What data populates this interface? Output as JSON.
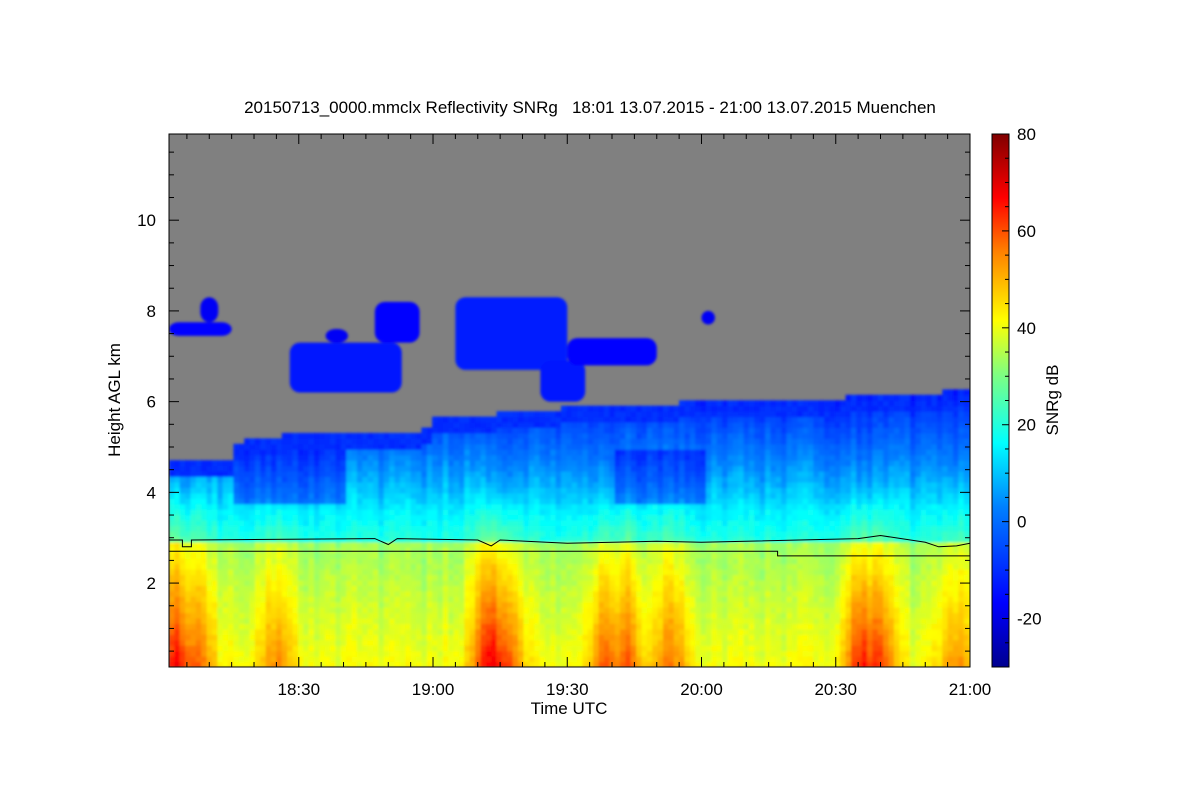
{
  "chart_data": {
    "type": "heatmap",
    "title": "20150713_0000.mmclx Reflectivity SNRg   18:01 13.07.2015 - 21:00 13.07.2015 Muenchen",
    "xlabel": "Time UTC",
    "ylabel": "Height AGL km",
    "colorbar_label": "SNRg dB",
    "x_range_min": [
      1081,
      1260
    ],
    "y_range_km": [
      0.15,
      11.9
    ],
    "color_range_db": [
      -30,
      80
    ],
    "x_ticks": [
      {
        "min": 1110,
        "label": "18:30"
      },
      {
        "min": 1140,
        "label": "19:00"
      },
      {
        "min": 1170,
        "label": "19:30"
      },
      {
        "min": 1200,
        "label": "20:00"
      },
      {
        "min": 1230,
        "label": "20:30"
      },
      {
        "min": 1260,
        "label": "21:00"
      }
    ],
    "y_ticks": [
      {
        "km": 2,
        "label": "2"
      },
      {
        "km": 4,
        "label": "4"
      },
      {
        "km": 6,
        "label": "6"
      },
      {
        "km": 8,
        "label": "8"
      },
      {
        "km": 10,
        "label": "10"
      }
    ],
    "colorbar_ticks": [
      {
        "db": -20,
        "label": "-20"
      },
      {
        "db": 0,
        "label": "0"
      },
      {
        "db": 20,
        "label": "20"
      },
      {
        "db": 40,
        "label": "40"
      },
      {
        "db": 60,
        "label": "60"
      },
      {
        "db": 80,
        "label": "80"
      }
    ],
    "background_color": "#808080",
    "cloud_top_km": [
      [
        1081,
        4.7
      ],
      [
        1096,
        4.7
      ],
      [
        1096,
        5.05
      ],
      [
        1115,
        5.3
      ],
      [
        1133,
        5.2
      ],
      [
        1140,
        5.4
      ],
      [
        1140,
        5.6
      ],
      [
        1160,
        5.7
      ],
      [
        1175,
        5.85
      ],
      [
        1192,
        5.9
      ],
      [
        1220,
        6.0
      ],
      [
        1240,
        6.05
      ],
      [
        1260,
        6.2
      ]
    ],
    "precip_shafts": [
      {
        "t": 1083,
        "strength": 0.9
      },
      {
        "t": 1087,
        "strength": 0.6
      },
      {
        "t": 1105,
        "strength": 0.5
      },
      {
        "t": 1153,
        "strength": 1.0
      },
      {
        "t": 1156,
        "strength": 0.8
      },
      {
        "t": 1179,
        "strength": 0.7
      },
      {
        "t": 1183,
        "strength": 0.65
      },
      {
        "t": 1193,
        "strength": 0.55
      },
      {
        "t": 1236,
        "strength": 0.9
      },
      {
        "t": 1239,
        "strength": 0.8
      },
      {
        "t": 1257,
        "strength": 0.45
      }
    ],
    "upper_cloud_patches": [
      {
        "t0": 1081,
        "t1": 1095,
        "k0": 7.45,
        "k1": 7.75,
        "db": -16
      },
      {
        "t0": 1088,
        "t1": 1092,
        "k0": 7.75,
        "k1": 8.3,
        "db": -18
      },
      {
        "t0": 1108,
        "t1": 1133,
        "k0": 6.2,
        "k1": 7.3,
        "db": -14
      },
      {
        "t0": 1116,
        "t1": 1121,
        "k0": 7.3,
        "k1": 7.6,
        "db": -18
      },
      {
        "t0": 1127,
        "t1": 1137,
        "k0": 7.3,
        "k1": 8.2,
        "db": -16
      },
      {
        "t0": 1145,
        "t1": 1170,
        "k0": 6.7,
        "k1": 8.3,
        "db": -12
      },
      {
        "t0": 1164,
        "t1": 1174,
        "k0": 6.0,
        "k1": 6.9,
        "db": -14
      },
      {
        "t0": 1170,
        "t1": 1190,
        "k0": 6.8,
        "k1": 7.4,
        "db": -16
      },
      {
        "t0": 1200,
        "t1": 1203,
        "k0": 7.7,
        "k1": 8.0,
        "db": -18
      }
    ],
    "melting_layer_km": [
      [
        1081,
        2.95
      ],
      [
        1084,
        2.95
      ],
      [
        1084,
        2.8
      ],
      [
        1086,
        2.8
      ],
      [
        1086,
        2.95
      ],
      [
        1127,
        2.98
      ],
      [
        1130,
        2.85
      ],
      [
        1132,
        2.98
      ],
      [
        1150,
        2.95
      ],
      [
        1153,
        2.82
      ],
      [
        1155,
        2.95
      ],
      [
        1170,
        2.88
      ],
      [
        1190,
        2.92
      ],
      [
        1200,
        2.9
      ],
      [
        1235,
        2.98
      ],
      [
        1240,
        3.05
      ],
      [
        1250,
        2.9
      ],
      [
        1253,
        2.8
      ],
      [
        1257,
        2.82
      ],
      [
        1260,
        2.88
      ]
    ],
    "reference_line_km": [
      [
        1081,
        2.7
      ],
      [
        1217,
        2.7
      ],
      [
        1217,
        2.6
      ],
      [
        1260,
        2.6
      ]
    ]
  }
}
